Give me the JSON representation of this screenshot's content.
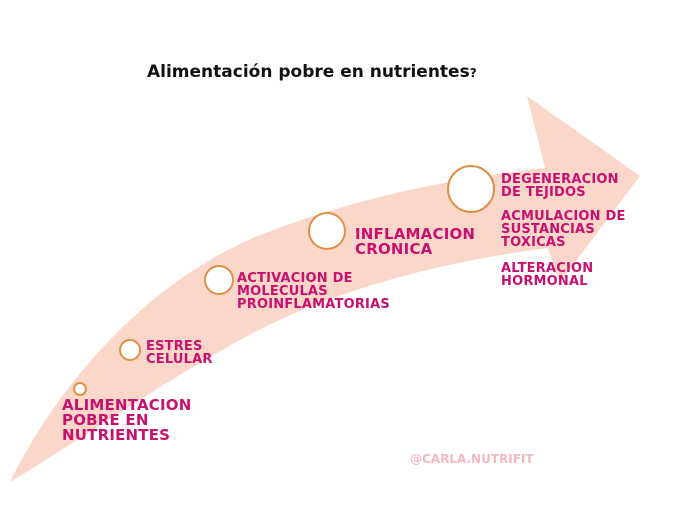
{
  "title": "Alimentación pobre en nutrientes",
  "title_suffix": "?",
  "colors": {
    "arrow": "#fbd7ca",
    "circle_stroke": "#e08f46",
    "label": "#c8106e",
    "handle": "#f3b9c0"
  },
  "steps": [
    {
      "label": "ALIMENTACION\nPOBRE EN\nNUTRIENTES"
    },
    {
      "label": "ESTRES\nCELULAR"
    },
    {
      "label": "ACTIVACION DE\nMOLECULAS\nPROINFLAMATORIAS"
    },
    {
      "label": "INFLAMACION\nCRONICA"
    },
    {
      "label": "DEGENERACION\nDE TEJIDOS"
    }
  ],
  "extra_effects": [
    "ACMULACION DE\nSUSTANCIAS\nTOXICAS",
    "ALTERACION\nHORMONAL"
  ],
  "handle": "@CARLA.NUTRIFIT"
}
